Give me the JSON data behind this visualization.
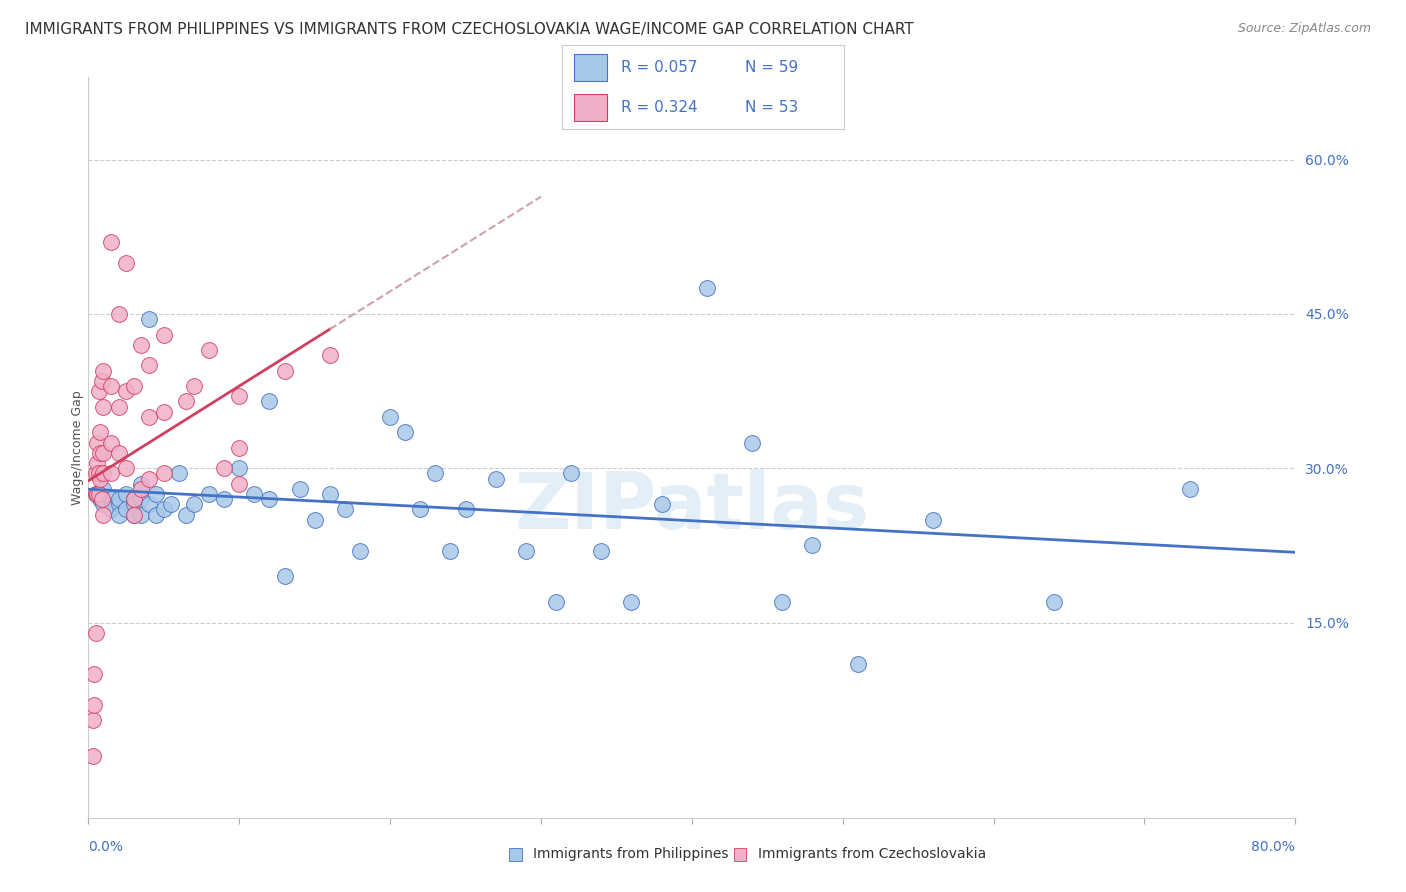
{
  "title": "IMMIGRANTS FROM PHILIPPINES VS IMMIGRANTS FROM CZECHOSLOVAKIA WAGE/INCOME GAP CORRELATION CHART",
  "source": "Source: ZipAtlas.com",
  "ylabel": "Wage/Income Gap",
  "watermark": "ZIPatlas",
  "xlim": [
    0.0,
    0.8
  ],
  "ylim": [
    -0.04,
    0.68
  ],
  "right_yticks": [
    0.15,
    0.3,
    0.45,
    0.6
  ],
  "right_yticklabels": [
    "15.0%",
    "30.0%",
    "45.0%",
    "60.0%"
  ],
  "color_blue": "#a8c8e8",
  "color_pink": "#f0b0c8",
  "line_blue": "#4472c4",
  "line_pink": "#d04060",
  "line_dashed_color": "#d0a0a8",
  "background": "#ffffff",
  "title_fontsize": 11,
  "source_fontsize": 9,
  "philippines_x": [
    0.005,
    0.008,
    0.01,
    0.01,
    0.015,
    0.015,
    0.02,
    0.02,
    0.02,
    0.025,
    0.025,
    0.03,
    0.03,
    0.03,
    0.035,
    0.035,
    0.035,
    0.04,
    0.04,
    0.045,
    0.045,
    0.05,
    0.055,
    0.06,
    0.065,
    0.07,
    0.08,
    0.09,
    0.1,
    0.11,
    0.12,
    0.12,
    0.13,
    0.14,
    0.15,
    0.16,
    0.17,
    0.18,
    0.2,
    0.21,
    0.22,
    0.23,
    0.24,
    0.25,
    0.27,
    0.29,
    0.31,
    0.32,
    0.34,
    0.36,
    0.38,
    0.41,
    0.44,
    0.46,
    0.48,
    0.51,
    0.56,
    0.64,
    0.73
  ],
  "philippines_y": [
    0.275,
    0.27,
    0.28,
    0.265,
    0.27,
    0.26,
    0.265,
    0.27,
    0.255,
    0.275,
    0.26,
    0.27,
    0.265,
    0.255,
    0.285,
    0.27,
    0.255,
    0.445,
    0.265,
    0.275,
    0.255,
    0.26,
    0.265,
    0.295,
    0.255,
    0.265,
    0.275,
    0.27,
    0.3,
    0.275,
    0.365,
    0.27,
    0.195,
    0.28,
    0.25,
    0.275,
    0.26,
    0.22,
    0.35,
    0.335,
    0.26,
    0.295,
    0.22,
    0.26,
    0.29,
    0.22,
    0.17,
    0.295,
    0.22,
    0.17,
    0.265,
    0.475,
    0.325,
    0.17,
    0.225,
    0.11,
    0.25,
    0.17,
    0.28
  ],
  "czechoslovakia_x": [
    0.003,
    0.003,
    0.004,
    0.004,
    0.005,
    0.005,
    0.005,
    0.006,
    0.006,
    0.006,
    0.007,
    0.007,
    0.007,
    0.008,
    0.008,
    0.008,
    0.009,
    0.009,
    0.01,
    0.01,
    0.01,
    0.01,
    0.01,
    0.015,
    0.015,
    0.015,
    0.015,
    0.02,
    0.02,
    0.02,
    0.025,
    0.025,
    0.025,
    0.03,
    0.03,
    0.03,
    0.035,
    0.035,
    0.04,
    0.04,
    0.04,
    0.05,
    0.05,
    0.05,
    0.065,
    0.07,
    0.08,
    0.09,
    0.1,
    0.1,
    0.1,
    0.13,
    0.16
  ],
  "czechoslovakia_y": [
    0.02,
    0.055,
    0.07,
    0.1,
    0.14,
    0.275,
    0.295,
    0.275,
    0.305,
    0.325,
    0.275,
    0.295,
    0.375,
    0.29,
    0.315,
    0.335,
    0.27,
    0.385,
    0.255,
    0.295,
    0.315,
    0.36,
    0.395,
    0.295,
    0.325,
    0.38,
    0.52,
    0.315,
    0.36,
    0.45,
    0.3,
    0.375,
    0.5,
    0.255,
    0.27,
    0.38,
    0.28,
    0.42,
    0.29,
    0.35,
    0.4,
    0.295,
    0.355,
    0.43,
    0.365,
    0.38,
    0.415,
    0.3,
    0.285,
    0.32,
    0.37,
    0.395,
    0.41
  ]
}
